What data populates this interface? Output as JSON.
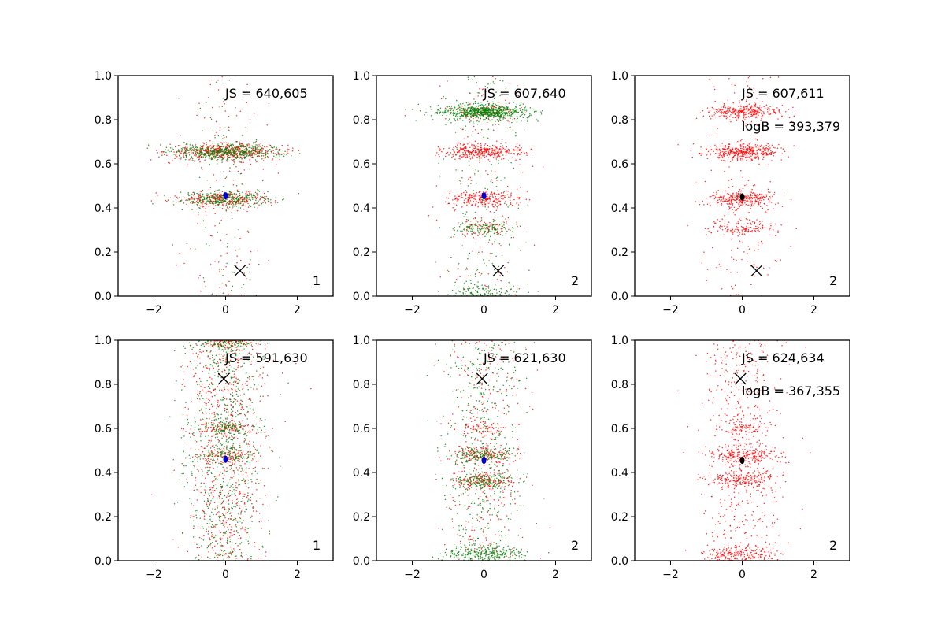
{
  "chart_data": [
    {
      "type": "scatter",
      "panel_label": "1",
      "annotations": [
        "JS = 640,605"
      ],
      "xlim": [
        -3,
        3
      ],
      "ylim": [
        0,
        1
      ],
      "xticks": [
        -2,
        0,
        2
      ],
      "yticks": [
        0.0,
        0.2,
        0.4,
        0.6,
        0.8,
        1.0
      ],
      "xtick_labels": [
        "−2",
        "0",
        "2"
      ],
      "ytick_labels": [
        "0.0",
        "0.2",
        "0.4",
        "0.6",
        "0.8",
        "1.0"
      ],
      "x_marker": {
        "x": 0.4,
        "y": 0.115
      },
      "center_point": {
        "x": 0.0,
        "y": 0.455,
        "color": "#0000cc"
      },
      "series": [
        {
          "name": "red",
          "color": "#ff0000",
          "bands": [
            {
              "y": 0.655,
              "sx": 0.8,
              "n": 500
            },
            {
              "y": 0.44,
              "sx": 0.65,
              "n": 300
            }
          ],
          "background_n": 120
        },
        {
          "name": "green",
          "color": "#008000",
          "bands": [
            {
              "y": 0.655,
              "sx": 0.8,
              "n": 500
            },
            {
              "y": 0.44,
              "sx": 0.65,
              "n": 300
            }
          ],
          "background_n": 100
        }
      ]
    },
    {
      "type": "scatter",
      "panel_label": "2",
      "annotations": [
        "JS = 607,640"
      ],
      "xlim": [
        -3,
        3
      ],
      "ylim": [
        0,
        1
      ],
      "xticks": [
        -2,
        0,
        2
      ],
      "yticks": [
        0.0,
        0.2,
        0.4,
        0.6,
        0.8,
        1.0
      ],
      "xtick_labels": [
        "−2",
        "0",
        "2"
      ],
      "ytick_labels": [
        "0.0",
        "0.2",
        "0.4",
        "0.6",
        "0.8",
        "1.0"
      ],
      "x_marker": {
        "x": 0.4,
        "y": 0.115
      },
      "center_point": {
        "x": 0.0,
        "y": 0.455,
        "color": "#0000cc"
      },
      "series": [
        {
          "name": "red",
          "color": "#ff0000",
          "bands": [
            {
              "y": 0.655,
              "sx": 0.55,
              "n": 350
            },
            {
              "y": 0.44,
              "sx": 0.5,
              "n": 250
            },
            {
              "y": 0.835,
              "sx": 0.5,
              "n": 120
            },
            {
              "y": 0.31,
              "sx": 0.45,
              "n": 80
            }
          ],
          "background_n": 150
        },
        {
          "name": "green",
          "color": "#008000",
          "bands": [
            {
              "y": 0.835,
              "sx": 0.65,
              "n": 700
            },
            {
              "y": 0.31,
              "sx": 0.4,
              "n": 120
            },
            {
              "y": 0.02,
              "sx": 0.6,
              "n": 100
            }
          ],
          "background_n": 220
        }
      ]
    },
    {
      "type": "scatter",
      "panel_label": "2",
      "annotations": [
        "JS = 607,611",
        "logB = 393,379"
      ],
      "xlim": [
        -3,
        3
      ],
      "ylim": [
        0,
        1
      ],
      "xticks": [
        -2,
        0,
        2
      ],
      "yticks": [
        0.0,
        0.2,
        0.4,
        0.6,
        0.8,
        1.0
      ],
      "xtick_labels": [
        "−2",
        "0",
        "2"
      ],
      "ytick_labels": [
        "0.0",
        "0.2",
        "0.4",
        "0.6",
        "0.8",
        "1.0"
      ],
      "x_marker": {
        "x": 0.4,
        "y": 0.115
      },
      "center_point": {
        "x": 0.0,
        "y": 0.45,
        "color": "#000000"
      },
      "series": [
        {
          "name": "red",
          "color": "#ff0000",
          "bands": [
            {
              "y": 0.835,
              "sx": 0.5,
              "n": 300
            },
            {
              "y": 0.655,
              "sx": 0.55,
              "n": 400
            },
            {
              "y": 0.44,
              "sx": 0.5,
              "n": 300
            },
            {
              "y": 0.31,
              "sx": 0.45,
              "n": 120
            }
          ],
          "background_n": 180
        }
      ]
    },
    {
      "type": "scatter",
      "panel_label": "1",
      "annotations": [
        "JS = 591,630"
      ],
      "xlim": [
        -3,
        3
      ],
      "ylim": [
        0,
        1
      ],
      "xticks": [
        -2,
        0,
        2
      ],
      "yticks": [
        0.0,
        0.2,
        0.4,
        0.6,
        0.8,
        1.0
      ],
      "xtick_labels": [
        "−2",
        "0",
        "2"
      ],
      "ytick_labels": [
        "0.0",
        "0.2",
        "0.4",
        "0.6",
        "0.8",
        "1.0"
      ],
      "x_marker": {
        "x": -0.05,
        "y": 0.825
      },
      "center_point": {
        "x": 0.0,
        "y": 0.46,
        "color": "#0000cc"
      },
      "series": [
        {
          "name": "red",
          "color": "#ff0000",
          "bands": [
            {
              "y": 0.995,
              "sx": 0.5,
              "n": 120
            },
            {
              "y": 0.6,
              "sx": 0.45,
              "n": 100
            },
            {
              "y": 0.48,
              "sx": 0.45,
              "n": 100
            }
          ],
          "background_n": 700
        },
        {
          "name": "green",
          "color": "#008000",
          "bands": [
            {
              "y": 0.995,
              "sx": 0.5,
              "n": 120
            },
            {
              "y": 0.6,
              "sx": 0.45,
              "n": 100
            },
            {
              "y": 0.48,
              "sx": 0.45,
              "n": 100
            }
          ],
          "background_n": 700
        }
      ]
    },
    {
      "type": "scatter",
      "panel_label": "2",
      "annotations": [
        "JS = 621,630"
      ],
      "xlim": [
        -3,
        3
      ],
      "ylim": [
        0,
        1
      ],
      "xticks": [
        -2,
        0,
        2
      ],
      "yticks": [
        0.0,
        0.2,
        0.4,
        0.6,
        0.8,
        1.0
      ],
      "xtick_labels": [
        "−2",
        "0",
        "2"
      ],
      "ytick_labels": [
        "0.0",
        "0.2",
        "0.4",
        "0.6",
        "0.8",
        "1.0"
      ],
      "x_marker": {
        "x": -0.05,
        "y": 0.825
      },
      "center_point": {
        "x": 0.0,
        "y": 0.455,
        "color": "#0000cc"
      },
      "series": [
        {
          "name": "red",
          "color": "#ff0000",
          "bands": [
            {
              "y": 0.48,
              "sx": 0.45,
              "n": 150
            },
            {
              "y": 0.36,
              "sx": 0.45,
              "n": 150
            },
            {
              "y": 0.6,
              "sx": 0.35,
              "n": 60
            }
          ],
          "background_n": 350
        },
        {
          "name": "green",
          "color": "#008000",
          "bands": [
            {
              "y": 0.48,
              "sx": 0.45,
              "n": 150
            },
            {
              "y": 0.36,
              "sx": 0.45,
              "n": 150
            },
            {
              "y": 0.03,
              "sx": 0.55,
              "n": 250
            }
          ],
          "background_n": 450
        }
      ]
    },
    {
      "type": "scatter",
      "panel_label": "2",
      "annotations": [
        "JS = 624,634",
        "logB = 367,355"
      ],
      "xlim": [
        -3,
        3
      ],
      "ylim": [
        0,
        1
      ],
      "xticks": [
        -2,
        0,
        2
      ],
      "yticks": [
        0.0,
        0.2,
        0.4,
        0.6,
        0.8,
        1.0
      ],
      "xtick_labels": [
        "−2",
        "0",
        "2"
      ],
      "ytick_labels": [
        "0.0",
        "0.2",
        "0.4",
        "0.6",
        "0.8",
        "1.0"
      ],
      "x_marker": {
        "x": -0.05,
        "y": 0.825
      },
      "center_point": {
        "x": 0.0,
        "y": 0.455,
        "color": "#000000"
      },
      "series": [
        {
          "name": "red",
          "color": "#ff0000",
          "bands": [
            {
              "y": 0.48,
              "sx": 0.5,
              "n": 200
            },
            {
              "y": 0.37,
              "sx": 0.5,
              "n": 200
            },
            {
              "y": 0.6,
              "sx": 0.35,
              "n": 80
            },
            {
              "y": 0.03,
              "sx": 0.5,
              "n": 200
            }
          ],
          "background_n": 500
        }
      ]
    }
  ]
}
